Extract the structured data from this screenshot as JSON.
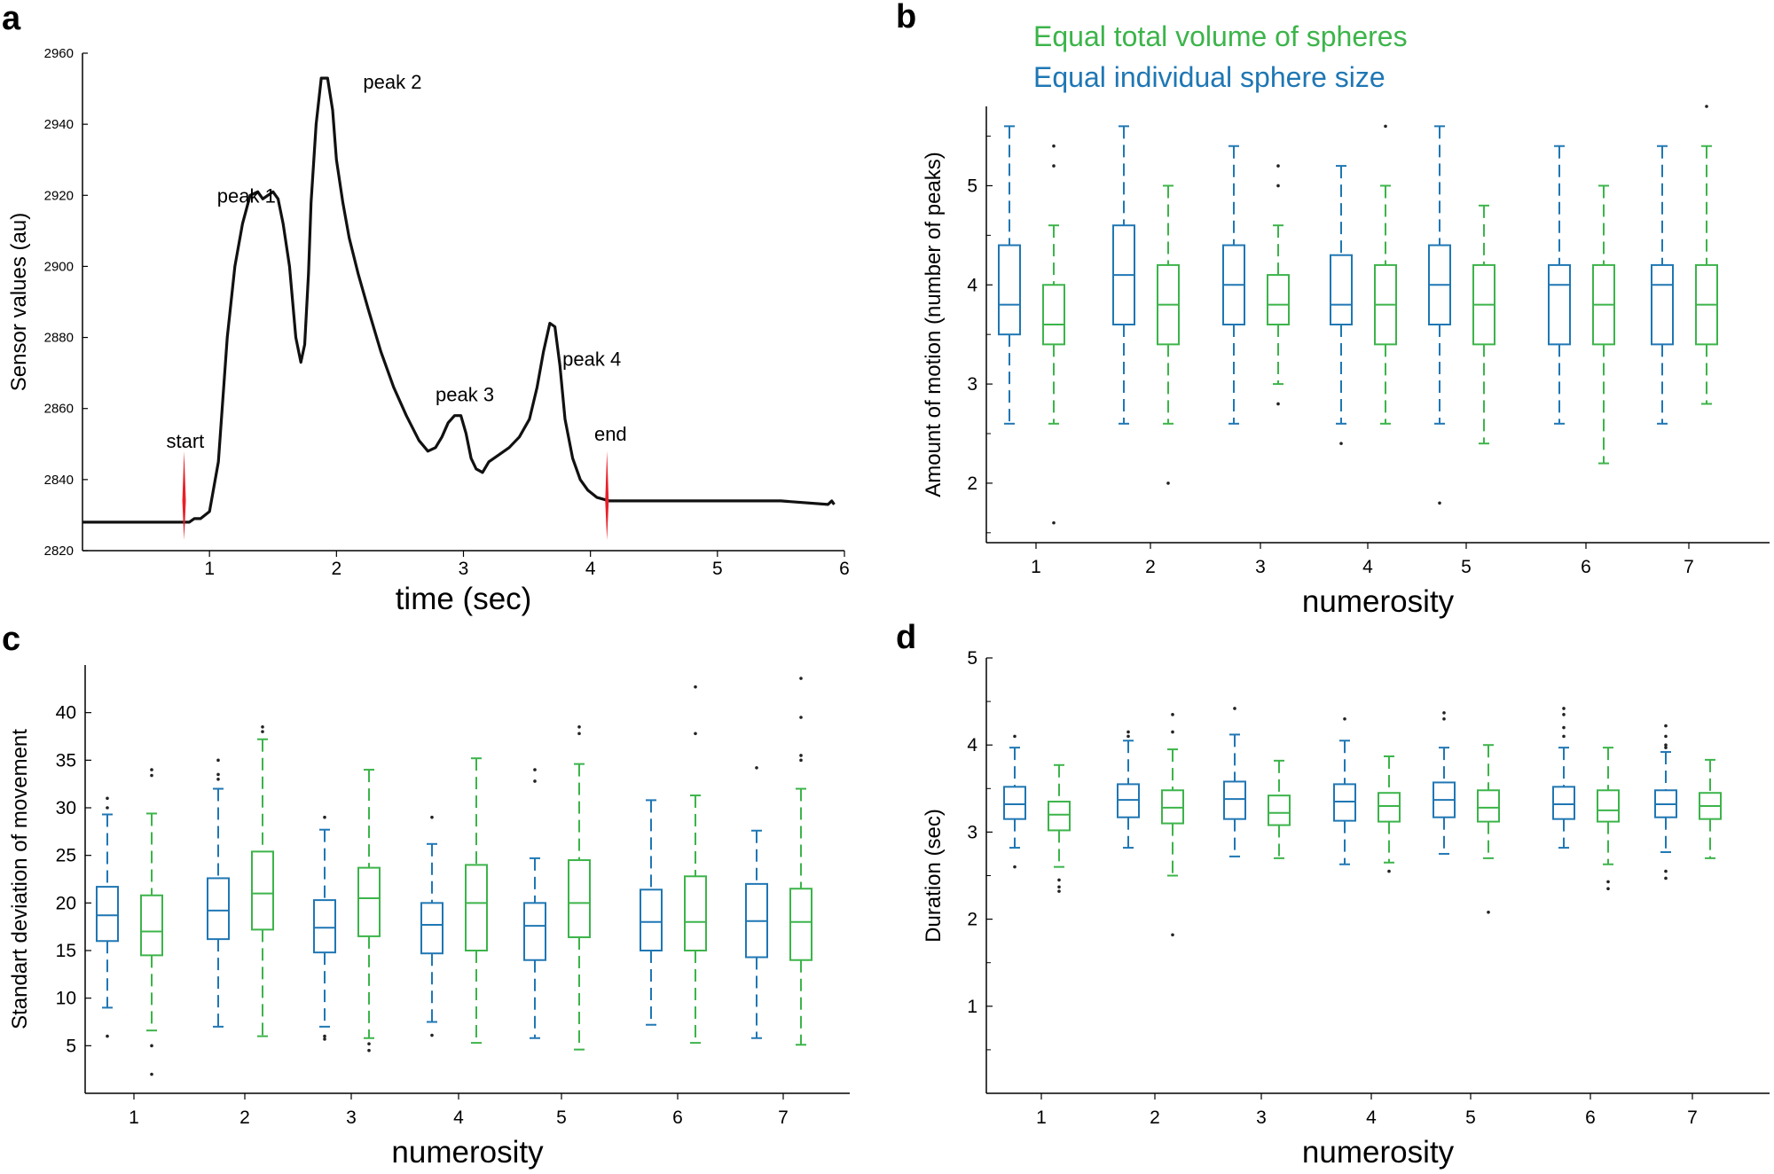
{
  "colors": {
    "blue": "#1f77b4",
    "green": "#3cb44a",
    "marker": "#e8202a",
    "line": "#111111"
  },
  "legend": {
    "green_label": "Equal total volume of spheres",
    "blue_label": "Equal individual sphere size"
  },
  "chart_data": [
    {
      "panel": "a",
      "type": "line",
      "xlabel": "time (sec)",
      "ylabel": "Sensor values (au)",
      "xlim": [
        0,
        6
      ],
      "ylim": [
        2820,
        2960
      ],
      "xticks": [
        1,
        2,
        3,
        4,
        5,
        6
      ],
      "yticks": [
        2820,
        2840,
        2860,
        2880,
        2900,
        2920,
        2940,
        2960
      ],
      "annotations": [
        {
          "text": "peak 1",
          "x": 1.06,
          "y": 2918
        },
        {
          "text": "peak 2",
          "x": 2.21,
          "y": 2950
        },
        {
          "text": "peak 3",
          "x": 2.78,
          "y": 2862
        },
        {
          "text": "peak 4",
          "x": 3.78,
          "y": 2872
        },
        {
          "text": "start",
          "x": 0.66,
          "y": 2849
        },
        {
          "text": "end",
          "x": 4.03,
          "y": 2851
        }
      ],
      "markers": [
        {
          "name": "start",
          "x": 0.8
        },
        {
          "name": "end",
          "x": 4.13
        }
      ],
      "series": [
        {
          "name": "sensor",
          "x": [
            0,
            0.84,
            0.88,
            0.93,
            1.0,
            1.07,
            1.14,
            1.2,
            1.26,
            1.32,
            1.38,
            1.42,
            1.46,
            1.5,
            1.54,
            1.58,
            1.63,
            1.68,
            1.72,
            1.75,
            1.78,
            1.8,
            1.84,
            1.88,
            1.93,
            1.97,
            2.0,
            2.05,
            2.1,
            2.17,
            2.25,
            2.35,
            2.45,
            2.55,
            2.65,
            2.72,
            2.78,
            2.83,
            2.88,
            2.93,
            2.98,
            3.02,
            3.06,
            3.1,
            3.15,
            3.2,
            3.28,
            3.36,
            3.44,
            3.52,
            3.58,
            3.63,
            3.68,
            3.72,
            3.76,
            3.8,
            3.86,
            3.92,
            3.98,
            4.05,
            4.15,
            4.3,
            4.6,
            5.0,
            5.5,
            5.87,
            5.9,
            5.92
          ],
          "y": [
            2828,
            2828,
            2829,
            2829,
            2831,
            2845,
            2880,
            2900,
            2912,
            2920,
            2921,
            2919,
            2920,
            2921,
            2919,
            2912,
            2900,
            2880,
            2873,
            2878,
            2898,
            2918,
            2940,
            2953,
            2953,
            2944,
            2930,
            2918,
            2908,
            2898,
            2888,
            2876,
            2866,
            2858,
            2851,
            2848,
            2849,
            2852,
            2856,
            2858,
            2858,
            2853,
            2846,
            2843,
            2842,
            2845,
            2847,
            2849,
            2852,
            2857,
            2866,
            2876,
            2884,
            2883,
            2872,
            2857,
            2846,
            2840,
            2837,
            2835,
            2834,
            2834,
            2834,
            2834,
            2834,
            2833,
            2834,
            2833
          ]
        }
      ]
    },
    {
      "panel": "b",
      "type": "boxplot",
      "xlabel": "numerosity",
      "ylabel": "Amount of motion (number of peaks)",
      "categories": [
        "1",
        "2",
        "3",
        "4",
        "5",
        "6",
        "7"
      ],
      "ylim": [
        1.4,
        5.8
      ],
      "yticks": [
        2,
        3,
        4,
        5
      ],
      "minor_yticks": [
        1.5,
        2.5,
        3.5,
        4.5,
        5.5
      ],
      "series": [
        {
          "name": "Equal individual sphere size",
          "color": "blue",
          "boxes": [
            {
              "q1": 3.5,
              "median": 3.8,
              "q3": 4.4,
              "lo": 2.6,
              "hi": 5.6,
              "outliers": []
            },
            {
              "q1": 3.6,
              "median": 4.1,
              "q3": 4.6,
              "lo": 2.6,
              "hi": 5.6,
              "outliers": []
            },
            {
              "q1": 3.6,
              "median": 4.0,
              "q3": 4.4,
              "lo": 2.6,
              "hi": 5.4,
              "outliers": []
            },
            {
              "q1": 3.6,
              "median": 3.8,
              "q3": 4.3,
              "lo": 2.6,
              "hi": 5.2,
              "outliers": [
                2.4
              ]
            },
            {
              "q1": 3.6,
              "median": 4.0,
              "q3": 4.4,
              "lo": 2.6,
              "hi": 5.6,
              "outliers": [
                1.8
              ]
            },
            {
              "q1": 3.4,
              "median": 4.0,
              "q3": 4.2,
              "lo": 2.6,
              "hi": 5.4,
              "outliers": []
            },
            {
              "q1": 3.4,
              "median": 4.0,
              "q3": 4.2,
              "lo": 2.6,
              "hi": 5.4,
              "outliers": []
            }
          ]
        },
        {
          "name": "Equal total volume of spheres",
          "color": "green",
          "boxes": [
            {
              "q1": 3.4,
              "median": 3.6,
              "q3": 4.0,
              "lo": 2.6,
              "hi": 4.6,
              "outliers": [
                5.4,
                5.2,
                1.6
              ]
            },
            {
              "q1": 3.4,
              "median": 3.8,
              "q3": 4.2,
              "lo": 2.6,
              "hi": 5.0,
              "outliers": [
                2.0
              ]
            },
            {
              "q1": 3.6,
              "median": 3.8,
              "q3": 4.1,
              "lo": 3.0,
              "hi": 4.6,
              "outliers": [
                5.2,
                5.0,
                2.8
              ]
            },
            {
              "q1": 3.4,
              "median": 3.8,
              "q3": 4.2,
              "lo": 2.6,
              "hi": 5.0,
              "outliers": [
                5.6
              ]
            },
            {
              "q1": 3.4,
              "median": 3.8,
              "q3": 4.2,
              "lo": 2.4,
              "hi": 4.8,
              "outliers": []
            },
            {
              "q1": 3.4,
              "median": 3.8,
              "q3": 4.2,
              "lo": 2.2,
              "hi": 5.0,
              "outliers": []
            },
            {
              "q1": 3.4,
              "median": 3.8,
              "q3": 4.2,
              "lo": 2.8,
              "hi": 5.4,
              "outliers": [
                5.8
              ]
            }
          ]
        }
      ]
    },
    {
      "panel": "c",
      "type": "boxplot",
      "xlabel": "numerosity",
      "ylabel": "Standart deviation of movement",
      "categories": [
        "1",
        "2",
        "3",
        "4",
        "5",
        "6",
        "7"
      ],
      "ylim": [
        0,
        45
      ],
      "yticks": [
        5,
        10,
        15,
        20,
        25,
        30,
        35,
        40
      ],
      "minor_yticks": [],
      "series": [
        {
          "name": "Equal individual sphere size",
          "color": "blue",
          "boxes": [
            {
              "q1": 16,
              "median": 18.7,
              "q3": 21.7,
              "lo": 9,
              "hi": 29.3,
              "outliers": [
                31,
                30,
                6
              ]
            },
            {
              "q1": 16.2,
              "median": 19.2,
              "q3": 22.6,
              "lo": 7,
              "hi": 32,
              "outliers": [
                35,
                33.5,
                33
              ]
            },
            {
              "q1": 14.8,
              "median": 17.4,
              "q3": 20.3,
              "lo": 7,
              "hi": 27.7,
              "outliers": [
                29,
                6,
                5.7
              ]
            },
            {
              "q1": 14.7,
              "median": 17.7,
              "q3": 20.0,
              "lo": 7.5,
              "hi": 26.2,
              "outliers": [
                29,
                6.1
              ]
            },
            {
              "q1": 14.0,
              "median": 17.6,
              "q3": 20.0,
              "lo": 5.8,
              "hi": 24.7,
              "outliers": [
                34,
                32.8
              ]
            },
            {
              "q1": 15.0,
              "median": 18.0,
              "q3": 21.4,
              "lo": 7.2,
              "hi": 30.8,
              "outliers": []
            },
            {
              "q1": 14.3,
              "median": 18.1,
              "q3": 22.0,
              "lo": 5.8,
              "hi": 27.6,
              "outliers": [
                34.2
              ]
            }
          ]
        },
        {
          "name": "Equal total volume of spheres",
          "color": "green",
          "boxes": [
            {
              "q1": 14.5,
              "median": 17.0,
              "q3": 20.8,
              "lo": 6.6,
              "hi": 29.4,
              "outliers": [
                34,
                33.4,
                5,
                2
              ]
            },
            {
              "q1": 17.2,
              "median": 21.0,
              "q3": 25.4,
              "lo": 6.0,
              "hi": 37.2,
              "outliers": [
                38.5,
                38
              ]
            },
            {
              "q1": 16.5,
              "median": 20.5,
              "q3": 23.7,
              "lo": 5.8,
              "hi": 34.0,
              "outliers": [
                5.2,
                4.5
              ]
            },
            {
              "q1": 15.0,
              "median": 20.0,
              "q3": 24.0,
              "lo": 5.3,
              "hi": 35.2,
              "outliers": []
            },
            {
              "q1": 16.4,
              "median": 20.0,
              "q3": 24.5,
              "lo": 4.6,
              "hi": 34.6,
              "outliers": [
                38.5,
                37.8
              ]
            },
            {
              "q1": 15.0,
              "median": 18.0,
              "q3": 22.8,
              "lo": 5.3,
              "hi": 31.3,
              "outliers": [
                42.7,
                37.8
              ]
            },
            {
              "q1": 14.0,
              "median": 18.0,
              "q3": 21.5,
              "lo": 5.1,
              "hi": 32.0,
              "outliers": [
                43.6,
                39.5,
                35.5,
                35
              ]
            }
          ]
        }
      ]
    },
    {
      "panel": "d",
      "type": "boxplot",
      "xlabel": "numerosity",
      "ylabel": "Duration (sec)",
      "categories": [
        "1",
        "2",
        "3",
        "4",
        "5",
        "6",
        "7"
      ],
      "ylim": [
        0,
        5
      ],
      "yticks": [
        1,
        2,
        3,
        4,
        5
      ],
      "minor_yticks": [
        0.5,
        1.5,
        2.5,
        3.5,
        4.5
      ],
      "series": [
        {
          "name": "Equal individual sphere size",
          "color": "blue",
          "boxes": [
            {
              "q1": 3.15,
              "median": 3.32,
              "q3": 3.52,
              "lo": 2.82,
              "hi": 3.97,
              "outliers": [
                4.1,
                2.6
              ]
            },
            {
              "q1": 3.17,
              "median": 3.37,
              "q3": 3.55,
              "lo": 2.82,
              "hi": 4.05,
              "outliers": [
                4.15,
                4.1
              ]
            },
            {
              "q1": 3.15,
              "median": 3.38,
              "q3": 3.58,
              "lo": 2.72,
              "hi": 4.12,
              "outliers": [
                4.42
              ]
            },
            {
              "q1": 3.13,
              "median": 3.35,
              "q3": 3.55,
              "lo": 2.63,
              "hi": 4.05,
              "outliers": [
                4.3
              ]
            },
            {
              "q1": 3.17,
              "median": 3.37,
              "q3": 3.57,
              "lo": 2.75,
              "hi": 3.97,
              "outliers": [
                4.37,
                4.3
              ]
            },
            {
              "q1": 3.15,
              "median": 3.32,
              "q3": 3.52,
              "lo": 2.82,
              "hi": 3.97,
              "outliers": [
                4.42,
                4.35,
                4.2,
                4.1
              ]
            },
            {
              "q1": 3.17,
              "median": 3.32,
              "q3": 3.48,
              "lo": 2.77,
              "hi": 3.92,
              "outliers": [
                4.22,
                4.1,
                4.0,
                3.97,
                2.55,
                2.47
              ]
            }
          ]
        },
        {
          "name": "Equal total volume of spheres",
          "color": "green",
          "boxes": [
            {
              "q1": 3.02,
              "median": 3.2,
              "q3": 3.35,
              "lo": 2.6,
              "hi": 3.77,
              "outliers": [
                2.45,
                2.37,
                2.32
              ]
            },
            {
              "q1": 3.1,
              "median": 3.28,
              "q3": 3.48,
              "lo": 2.5,
              "hi": 3.95,
              "outliers": [
                4.35,
                4.15,
                1.82
              ]
            },
            {
              "q1": 3.08,
              "median": 3.22,
              "q3": 3.42,
              "lo": 2.7,
              "hi": 3.82,
              "outliers": []
            },
            {
              "q1": 3.12,
              "median": 3.3,
              "q3": 3.45,
              "lo": 2.65,
              "hi": 3.87,
              "outliers": [
                2.55
              ]
            },
            {
              "q1": 3.12,
              "median": 3.28,
              "q3": 3.48,
              "lo": 2.7,
              "hi": 4.0,
              "outliers": [
                2.08
              ]
            },
            {
              "q1": 3.12,
              "median": 3.25,
              "q3": 3.48,
              "lo": 2.63,
              "hi": 3.97,
              "outliers": [
                2.43,
                2.35
              ]
            },
            {
              "q1": 3.15,
              "median": 3.3,
              "q3": 3.45,
              "lo": 2.7,
              "hi": 3.83,
              "outliers": []
            }
          ]
        }
      ]
    }
  ]
}
